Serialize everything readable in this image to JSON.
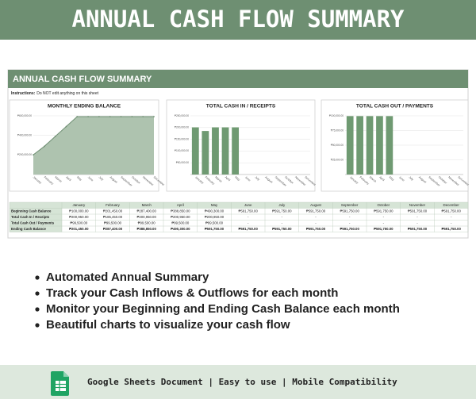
{
  "header": {
    "title": "ANNUAL CASH FLOW SUMMARY"
  },
  "sheet": {
    "title": "ANNUAL CASH FLOW SUMMARY",
    "instructions_label": "Instructions:",
    "instructions": "Do NOT edit anything on this sheet"
  },
  "chart_data": [
    {
      "type": "area",
      "title": "MONTHLY ENDING BALANCE",
      "color": "#6f8f73",
      "fill": "#aec3af",
      "categories": [
        "January",
        "February",
        "March",
        "April",
        "May",
        "June",
        "July",
        "August",
        "September",
        "October",
        "November",
        "December"
      ],
      "values": [
        201450,
        287400,
        388850,
        490300,
        591750,
        591750,
        591750,
        591750,
        591750,
        591750,
        591750,
        591750
      ],
      "ylim": [
        0,
        600000
      ],
      "yticks": [
        {
          "value": 200000,
          "label": "₱200,000.00"
        },
        {
          "value": 400000,
          "label": "₱400,000.00"
        },
        {
          "value": 600000,
          "label": "₱600,000.00"
        }
      ],
      "grid": true
    },
    {
      "type": "bar",
      "title": "TOTAL CASH IN / RECEIPTS",
      "color": "#6f9a72",
      "categories": [
        "January",
        "February",
        "March",
        "April",
        "May",
        "June",
        "July",
        "August",
        "September",
        "October",
        "November",
        "December"
      ],
      "values": [
        200950,
        185450,
        200950,
        200950,
        200950,
        0,
        0,
        0,
        0,
        0,
        0,
        0
      ],
      "ylim": [
        0,
        250000
      ],
      "yticks": [
        {
          "value": 50000,
          "label": "₱50,000.00"
        },
        {
          "value": 100000,
          "label": "₱100,000.00"
        },
        {
          "value": 150000,
          "label": "₱150,000.00"
        },
        {
          "value": 200000,
          "label": "₱200,000.00"
        },
        {
          "value": 250000,
          "label": "₱250,000.00"
        }
      ],
      "grid": true
    },
    {
      "type": "bar",
      "title": "TOTAL CASH OUT / PAYMENTS",
      "color": "#6f9a72",
      "categories": [
        "January",
        "February",
        "March",
        "April",
        "May",
        "June",
        "July",
        "August",
        "September",
        "October",
        "November",
        "December"
      ],
      "values": [
        99500,
        99500,
        99500,
        99500,
        99500,
        0,
        0,
        0,
        0,
        0,
        0,
        0
      ],
      "ylim": [
        0,
        100000
      ],
      "yticks": [
        {
          "value": 25000,
          "label": "₱25,000.00"
        },
        {
          "value": 50000,
          "label": "₱50,000.00"
        },
        {
          "value": 75000,
          "label": "₱75,000.00"
        },
        {
          "value": 100000,
          "label": "₱100,000.00"
        }
      ],
      "grid": true
    }
  ],
  "table": {
    "columns": [
      "January",
      "February",
      "March",
      "April",
      "May",
      "June",
      "July",
      "August",
      "September",
      "October",
      "November",
      "December"
    ],
    "rows": [
      {
        "label": "Beginning Cash Balance",
        "cells": [
          "₱100,000.00",
          "₱201,450.00",
          "₱287,400.00",
          "₱388,850.00",
          "₱490,300.00",
          "₱591,750.00",
          "₱591,750.00",
          "₱591,750.00",
          "₱591,750.00",
          "₱591,750.00",
          "₱591,750.00",
          "₱591,750.00"
        ]
      },
      {
        "label": "Total Cash In / Receipts",
        "cells": [
          "₱200,950.00",
          "₱185,450.00",
          "₱200,950.00",
          "₱200,950.00",
          "₱200,950.00",
          "-",
          "-",
          "-",
          "-",
          "-",
          "-",
          "-"
        ]
      },
      {
        "label": "Total Cash Out / Payments",
        "cells": [
          "₱99,500.00",
          "₱99,500.00",
          "₱99,500.00",
          "₱99,500.00",
          "₱99,500.00",
          "-",
          "-",
          "-",
          "-",
          "-",
          "-",
          "-"
        ]
      },
      {
        "label": "Ending Cash Balance",
        "cells": [
          "₱201,450.00",
          "₱287,400.00",
          "₱388,850.00",
          "₱490,300.00",
          "₱591,750.00",
          "₱591,750.00",
          "₱591,750.00",
          "₱591,750.00",
          "₱591,750.00",
          "₱591,750.00",
          "₱591,750.00",
          "₱591,750.00"
        ]
      }
    ]
  },
  "bullets": [
    "Automated Annual Summary",
    "Track your Cash Inflows & Outflows for each month",
    "Monitor your Beginning and Ending Cash Balance each month",
    "Beautiful charts to visualize your cash flow"
  ],
  "footer": {
    "text": "Google Sheets Document | Easy to use | Mobile Compatibility"
  }
}
